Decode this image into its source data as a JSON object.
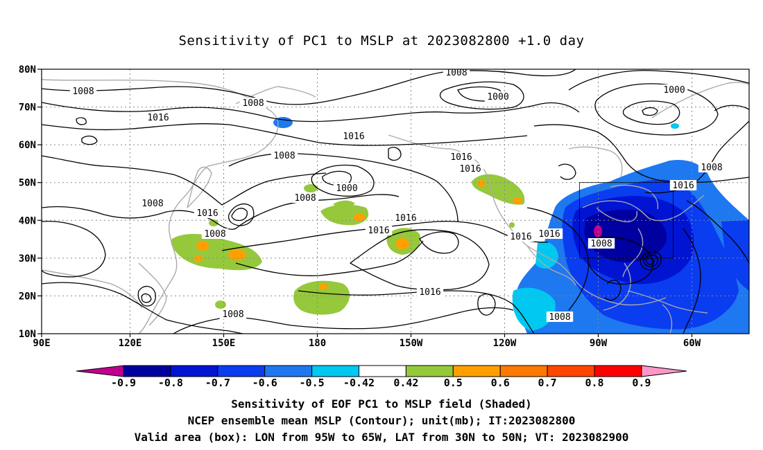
{
  "title": "Sensitivity of PC1 to MSLP at 2023082800 +1.0 day",
  "lat_labels": [
    "80N",
    "70N",
    "60N",
    "50N",
    "40N",
    "30N",
    "20N",
    "10N"
  ],
  "lon_labels": [
    "90E",
    "120E",
    "150E",
    "180",
    "150W",
    "120W",
    "90W",
    "60W"
  ],
  "contour_labels": [
    "1008",
    "1008",
    "1016",
    "1008",
    "1000",
    "1016",
    "1000",
    "1008",
    "1016",
    "1008",
    "1000",
    "1008",
    "1016",
    "1016",
    "1008",
    "1016",
    "1016",
    "1016",
    "1016",
    "1008",
    "1016",
    "1008",
    "1008",
    "1016",
    "1008"
  ],
  "colorbar": {
    "labels": [
      "-0.9",
      "-0.8",
      "-0.7",
      "-0.6",
      "-0.5",
      "-0.42",
      "0.42",
      "0.5",
      "0.6",
      "0.7",
      "0.8",
      "0.9"
    ],
    "colors": [
      "#c0008c",
      "#0000a0",
      "#0014d2",
      "#0a3cf0",
      "#1e78f0",
      "#00c8f0",
      "#ffffff",
      "#96c83c",
      "#ffa000",
      "#ff7800",
      "#ff4600",
      "#ff0000",
      "#ff96c8"
    ]
  },
  "captions": [
    "Sensitivity of EOF PC1 to MSLP field (Shaded)",
    "NCEP ensemble mean MSLP (Contour); unit(mb); IT:2023082800",
    "Valid area (box): LON from 95W to 65W, LAT from 30N to 50N; VT: 2023082900"
  ]
}
